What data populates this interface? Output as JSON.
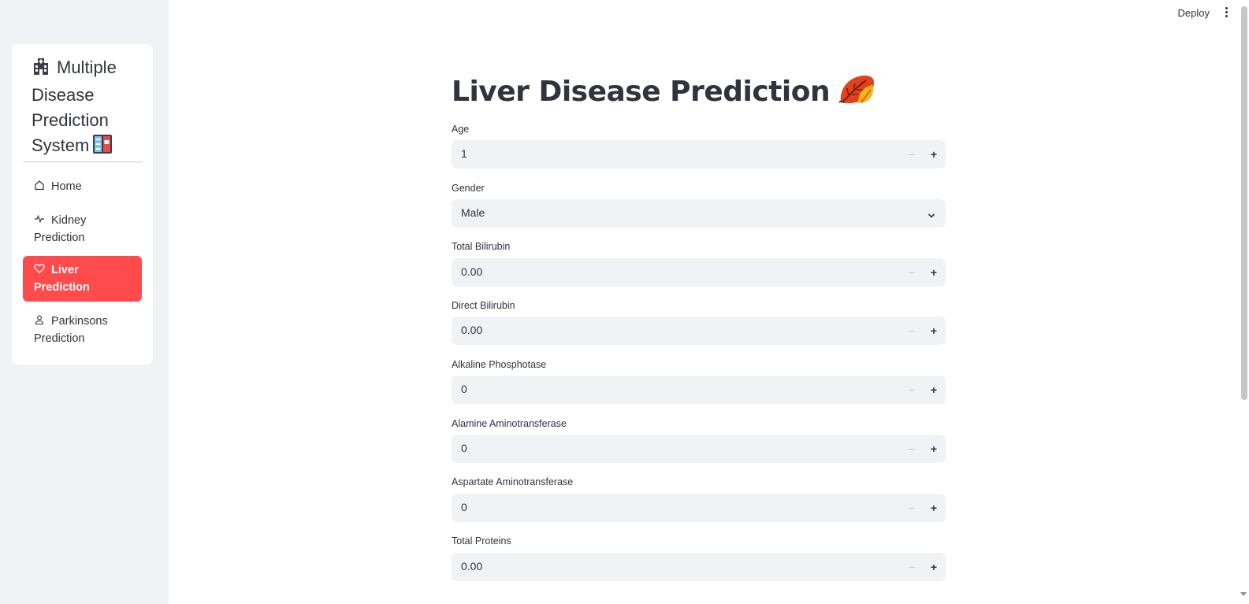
{
  "sidebar": {
    "title": "Multiple Disease Prediction System",
    "items": [
      {
        "label": "Home",
        "icon": "house-icon",
        "active": false
      },
      {
        "label": "Kidney Prediction",
        "icon": "activity-icon",
        "active": false
      },
      {
        "label": "Liver Prediction",
        "icon": "heart-icon",
        "active": true
      },
      {
        "label": "Parkinsons Prediction",
        "icon": "person-icon",
        "active": false
      }
    ],
    "accent_color": "#ff4b4b"
  },
  "header": {
    "deploy_label": "Deploy",
    "menu_icon": "kebab-menu-icon"
  },
  "main": {
    "title": "Liver Disease Prediction",
    "title_icon": "fallen-leaf-icon",
    "fields": [
      {
        "label": "Age",
        "value": "1",
        "type": "number"
      },
      {
        "label": "Gender",
        "value": "Male",
        "type": "select"
      },
      {
        "label": "Total Bilirubin",
        "value": "0.00",
        "type": "number"
      },
      {
        "label": "Direct Bilirubin",
        "value": "0.00",
        "type": "number"
      },
      {
        "label": "Alkaline Phosphotase",
        "value": "0",
        "type": "number"
      },
      {
        "label": "Alamine Aminotransferase",
        "value": "0",
        "type": "number"
      },
      {
        "label": "Aspartate Aminotransferase",
        "value": "0",
        "type": "number"
      },
      {
        "label": "Total Proteins",
        "value": "0.00",
        "type": "number"
      }
    ],
    "minus_symbol": "−",
    "plus_symbol": "+"
  }
}
